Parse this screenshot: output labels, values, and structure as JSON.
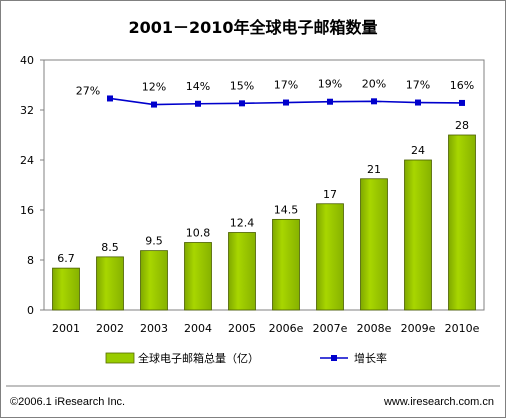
{
  "chart_data": {
    "type": "bar",
    "title": "2001－2010年全球电子邮箱数量",
    "categories": [
      "2001",
      "2002",
      "2003",
      "2004",
      "2005",
      "2006e",
      "2007e",
      "2008e",
      "2009e",
      "2010e"
    ],
    "series": [
      {
        "name": "全球电子邮箱总量（亿）",
        "type": "bar",
        "values": [
          6.7,
          8.5,
          9.5,
          10.8,
          12.4,
          14.5,
          17,
          21,
          24,
          28
        ],
        "labels": [
          "6.7",
          "8.5",
          "9.5",
          "10.8",
          "12.4",
          "14.5",
          "17",
          "21",
          "24",
          "28"
        ],
        "color": "#99cc00"
      },
      {
        "name": "增长率",
        "type": "line",
        "values": [
          null,
          27,
          12,
          14,
          15,
          17,
          19,
          20,
          17,
          16
        ],
        "labels": [
          "",
          "27%",
          "12%",
          "14%",
          "15%",
          "17%",
          "19%",
          "20%",
          "17%",
          "16%"
        ],
        "color": "#0000cc"
      }
    ],
    "y_ticks": [
      "0",
      "8",
      "16",
      "24",
      "32",
      "40"
    ],
    "ylim": [
      0,
      40
    ],
    "grid": false,
    "legend_position": "bottom"
  },
  "footer": {
    "copyright": "©2006.1  iResearch Inc.",
    "website": "www.iresearch.com.cn"
  }
}
